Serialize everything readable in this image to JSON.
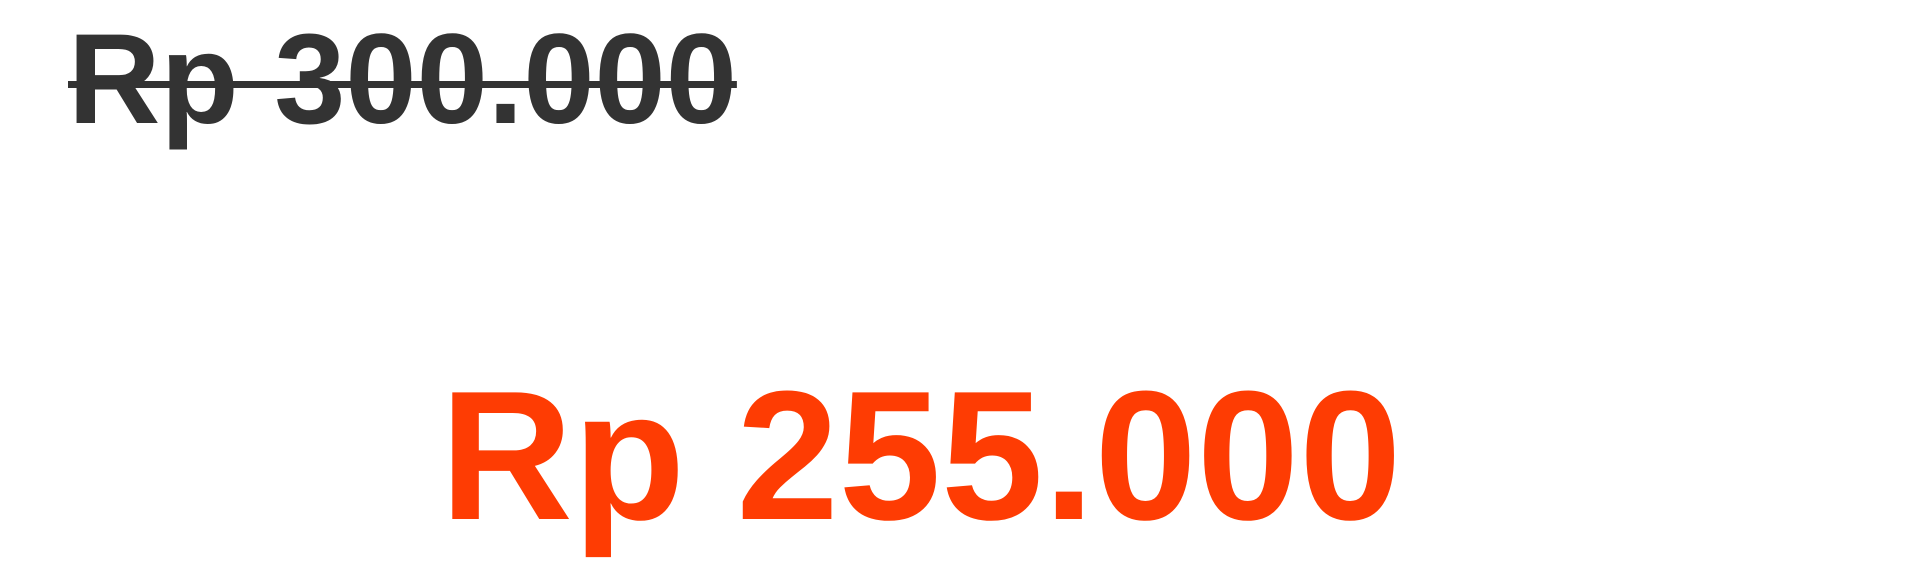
{
  "price": {
    "original": "Rp 300.000",
    "discounted": "Rp 255.000"
  },
  "colors": {
    "original_text": "#333333",
    "discount_accent": "#fe3c03",
    "background": "#ffffff"
  }
}
